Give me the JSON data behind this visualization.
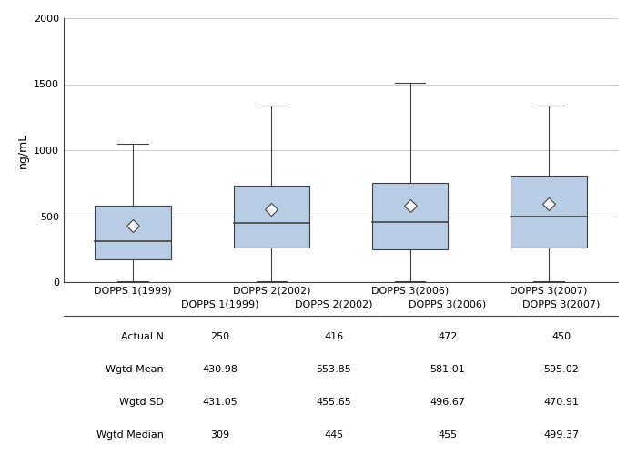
{
  "categories": [
    "DOPPS 1(1999)",
    "DOPPS 2(2002)",
    "DOPPS 3(2006)",
    "DOPPS 3(2007)"
  ],
  "boxes": [
    {
      "whisker_low": 10,
      "q1": 170,
      "median": 309,
      "q3": 580,
      "whisker_high": 1050,
      "mean": 430.98
    },
    {
      "whisker_low": 10,
      "q1": 265,
      "median": 445,
      "q3": 730,
      "whisker_high": 1340,
      "mean": 553.85
    },
    {
      "whisker_low": 10,
      "q1": 250,
      "median": 455,
      "q3": 750,
      "whisker_high": 1510,
      "mean": 581.01
    },
    {
      "whisker_low": 10,
      "q1": 265,
      "median": 499,
      "q3": 810,
      "whisker_high": 1340,
      "mean": 595.02
    }
  ],
  "actual_n": [
    250,
    416,
    472,
    450
  ],
  "wgtd_mean": [
    "430.98",
    "553.85",
    "581.01",
    "595.02"
  ],
  "wgtd_sd": [
    "431.05",
    "455.65",
    "496.67",
    "470.91"
  ],
  "wgtd_median": [
    "309",
    "445",
    "455",
    "499.37"
  ],
  "ylabel": "ng/mL",
  "ylim": [
    0,
    2000
  ],
  "yticks": [
    0,
    500,
    1000,
    1500,
    2000
  ],
  "box_facecolor": "#b8cce4",
  "box_edgecolor": "#404040",
  "whisker_color": "#404040",
  "median_color": "#404040",
  "mean_marker_color": "white",
  "mean_marker_edge": "#404040",
  "grid_color": "#cccccc",
  "background_color": "#ffffff",
  "table_row_labels": [
    "Actual N",
    "Wgtd Mean",
    "Wgtd SD",
    "Wgtd Median"
  ],
  "box_width": 0.55
}
